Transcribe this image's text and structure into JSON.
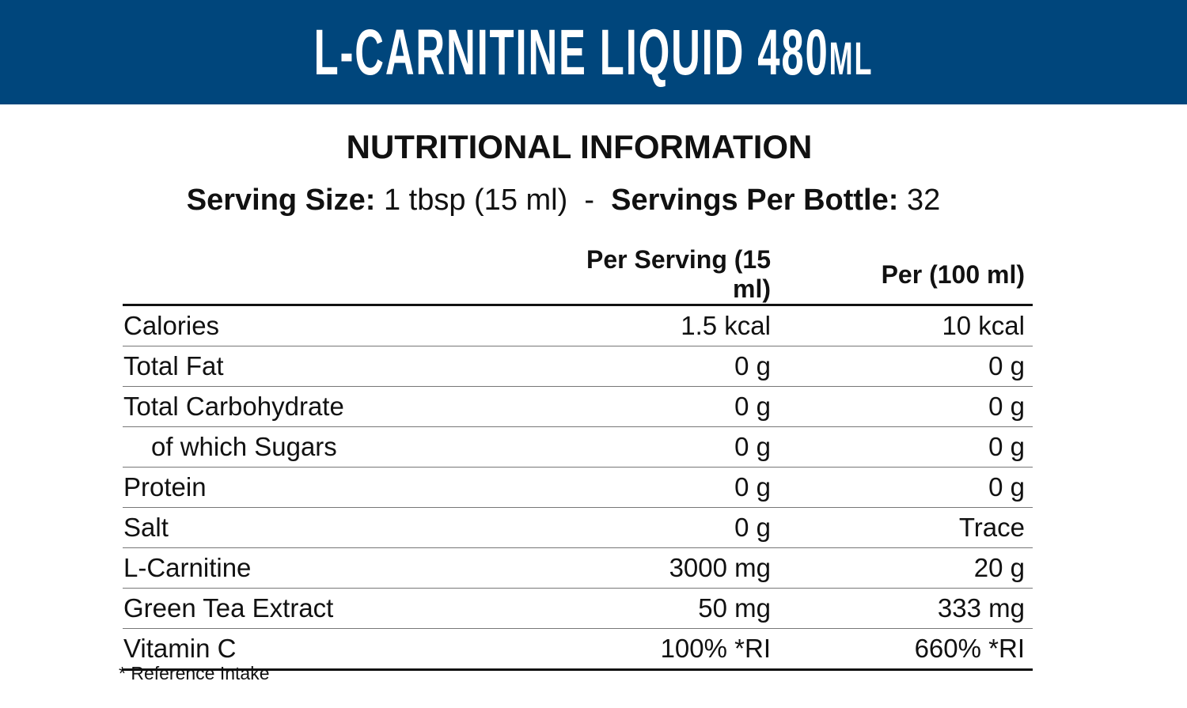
{
  "banner": {
    "title": "L-CARNITINE LIQUID 480",
    "unit": "ML",
    "color": "#00467c"
  },
  "heading": "NUTRITIONAL INFORMATION",
  "serving": {
    "size_label": "Serving Size:",
    "size_value": "1 tbsp (15 ml)",
    "separator": "-",
    "per_bottle_label": "Servings Per Bottle:",
    "per_bottle_value": "32"
  },
  "table": {
    "headers": [
      "",
      "Per Serving (15 ml)",
      "Per (100 ml)"
    ],
    "rows": [
      {
        "name": "Calories",
        "per_serving": "1.5 kcal",
        "per_100": "10 kcal"
      },
      {
        "name": "Total Fat",
        "per_serving": "0 g",
        "per_100": "0 g"
      },
      {
        "name": "Total Carbohydrate",
        "per_serving": "0 g",
        "per_100": "0 g"
      },
      {
        "name": "of which Sugars",
        "per_serving": "0 g",
        "per_100": "0 g"
      },
      {
        "name": "Protein",
        "per_serving": "0 g",
        "per_100": "0 g"
      },
      {
        "name": "Salt",
        "per_serving": "0 g",
        "per_100": "Trace"
      },
      {
        "name": "L-Carnitine",
        "per_serving": "3000 mg",
        "per_100": "20 g"
      },
      {
        "name": "Green Tea Extract",
        "per_serving": "50 mg",
        "per_100": "333 mg"
      },
      {
        "name": "Vitamin C",
        "per_serving": "100% *RI",
        "per_100": "660% *RI"
      }
    ]
  },
  "footnote": "* Reference Intake"
}
